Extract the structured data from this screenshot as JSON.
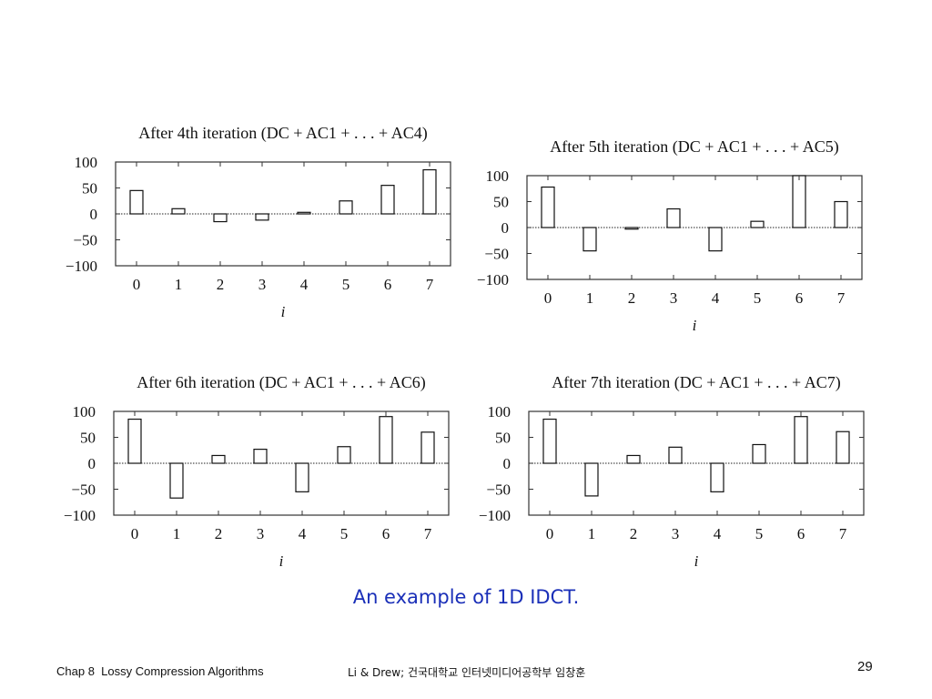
{
  "chart_data": [
    {
      "type": "bar",
      "title": "After 4th iteration (DC + AC1 + . . . + AC4)",
      "xlabel": "i",
      "ylabel": "",
      "categories": [
        "0",
        "1",
        "2",
        "3",
        "4",
        "5",
        "6",
        "7"
      ],
      "values": [
        45,
        10,
        -15,
        -12,
        3,
        25,
        55,
        85
      ],
      "ylim": [
        -100,
        100
      ],
      "yticks": [
        100,
        50,
        0,
        -50,
        -100
      ],
      "ytick_labels": [
        "100",
        "50",
        "0",
        "−50",
        "−100"
      ],
      "zero_line": "dotted",
      "grid": false
    },
    {
      "type": "bar",
      "title": "After 5th iteration (DC + AC1 + . . . + AC5)",
      "xlabel": "i",
      "ylabel": "",
      "categories": [
        "0",
        "1",
        "2",
        "3",
        "4",
        "5",
        "6",
        "7"
      ],
      "values": [
        78,
        -45,
        -3,
        36,
        -45,
        12,
        100,
        50
      ],
      "ylim": [
        -100,
        100
      ],
      "yticks": [
        100,
        50,
        0,
        -50,
        -100
      ],
      "ytick_labels": [
        "100",
        "50",
        "0",
        "−50",
        "−100"
      ],
      "zero_line": "dotted",
      "grid": false
    },
    {
      "type": "bar",
      "title": "After 6th iteration (DC + AC1 + . . . + AC6)",
      "xlabel": "i",
      "ylabel": "",
      "categories": [
        "0",
        "1",
        "2",
        "3",
        "4",
        "5",
        "6",
        "7"
      ],
      "values": [
        85,
        -67,
        15,
        27,
        -55,
        32,
        90,
        60
      ],
      "ylim": [
        -100,
        100
      ],
      "yticks": [
        100,
        50,
        0,
        -50,
        -100
      ],
      "ytick_labels": [
        "100",
        "50",
        "0",
        "−50",
        "−100"
      ],
      "zero_line": "dotted",
      "grid": false
    },
    {
      "type": "bar",
      "title": "After 7th iteration (DC + AC1 + . . . + AC7)",
      "xlabel": "i",
      "ylabel": "",
      "categories": [
        "0",
        "1",
        "2",
        "3",
        "4",
        "5",
        "6",
        "7"
      ],
      "values": [
        85,
        -63,
        15,
        31,
        -55,
        36,
        90,
        61
      ],
      "ylim": [
        -100,
        100
      ],
      "yticks": [
        100,
        50,
        0,
        -50,
        -100
      ],
      "ytick_labels": [
        "100",
        "50",
        "0",
        "−50",
        "−100"
      ],
      "zero_line": "dotted",
      "grid": false
    }
  ],
  "caption": "An example of 1D IDCT.",
  "footer": {
    "left": "Chap 8  Lossy Compression Algorithms",
    "center": "Li & Drew; 건국대학교 인터넷미디어공학부 임창훈",
    "page_number": "29"
  },
  "colors": {
    "caption": "#1a2fb8",
    "bars_fill": "#ffffff",
    "bars_stroke": "#111111"
  }
}
